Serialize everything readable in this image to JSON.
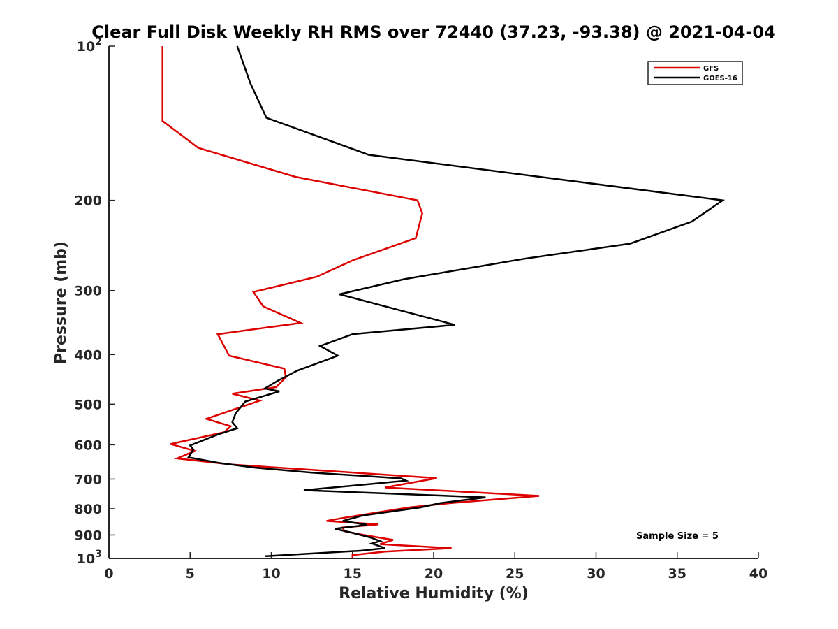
{
  "chart_data": {
    "type": "line",
    "title": "Clear Full Disk Weekly RH RMS over 72440 (37.23, -93.38) @ 2021-04-04",
    "xlabel": "Relative Humidity (%)",
    "ylabel": "Pressure (mb)",
    "xlim": [
      0,
      40
    ],
    "ylim": [
      100,
      1000
    ],
    "yscale": "log",
    "y_reversed": true,
    "grid": false,
    "legend_position": "top-right",
    "x_ticks": [
      "0",
      "5",
      "10",
      "15",
      "20",
      "25",
      "30",
      "35",
      "40"
    ],
    "y_ticks": [
      {
        "value": 100,
        "base": "10",
        "exp": "2"
      },
      {
        "value": 200,
        "label": "200"
      },
      {
        "value": 300,
        "label": "300"
      },
      {
        "value": 400,
        "label": "400"
      },
      {
        "value": 500,
        "label": "500"
      },
      {
        "value": 600,
        "label": "600"
      },
      {
        "value": 700,
        "label": "700"
      },
      {
        "value": 800,
        "label": "800"
      },
      {
        "value": 900,
        "label": "900"
      },
      {
        "value": 1000,
        "base": "10",
        "exp": "3"
      }
    ],
    "annotation": "Sample Size = 5",
    "series": [
      {
        "name": "GFS",
        "color": "#dd0000",
        "points": [
          [
            3.3,
            100
          ],
          [
            3.3,
            125
          ],
          [
            3.3,
            140
          ],
          [
            5.5,
            158
          ],
          [
            11.5,
            180
          ],
          [
            19.0,
            200
          ],
          [
            19.3,
            212
          ],
          [
            18.9,
            237
          ],
          [
            15.0,
            262
          ],
          [
            12.8,
            282
          ],
          [
            8.9,
            302
          ],
          [
            9.5,
            322
          ],
          [
            11.8,
            347
          ],
          [
            6.7,
            365
          ],
          [
            7.4,
            402
          ],
          [
            10.8,
            426
          ],
          [
            10.9,
            443
          ],
          [
            10.3,
            463
          ],
          [
            7.6,
            477
          ],
          [
            9.3,
            492
          ],
          [
            6.0,
            534
          ],
          [
            7.5,
            552
          ],
          [
            7.1,
            567
          ],
          [
            3.8,
            598
          ],
          [
            5.3,
            617
          ],
          [
            4.2,
            638
          ],
          [
            7.6,
            656
          ],
          [
            12.0,
            670
          ],
          [
            20.2,
            697
          ],
          [
            17.0,
            727
          ],
          [
            26.5,
            755
          ],
          [
            21.0,
            780
          ],
          [
            18.5,
            795
          ],
          [
            14.5,
            833
          ],
          [
            13.4,
            845
          ],
          [
            16.6,
            858
          ],
          [
            14.4,
            870
          ],
          [
            14.5,
            885
          ],
          [
            15.7,
            900
          ],
          [
            17.5,
            920
          ],
          [
            16.7,
            938
          ],
          [
            21.1,
            955
          ],
          [
            17.0,
            970
          ],
          [
            15.0,
            985
          ],
          [
            15.0,
            997
          ]
        ]
      },
      {
        "name": "GOES-16",
        "color": "#000000",
        "points": [
          [
            7.9,
            100
          ],
          [
            8.7,
            118
          ],
          [
            9.7,
            138
          ],
          [
            16.0,
            163
          ],
          [
            37.8,
            200
          ],
          [
            35.9,
            220
          ],
          [
            32.1,
            243
          ],
          [
            25.6,
            260
          ],
          [
            18.2,
            285
          ],
          [
            14.2,
            305
          ],
          [
            21.3,
            350
          ],
          [
            15.0,
            365
          ],
          [
            13.0,
            385
          ],
          [
            14.1,
            402
          ],
          [
            11.6,
            430
          ],
          [
            10.4,
            450
          ],
          [
            9.6,
            466
          ],
          [
            10.5,
            472
          ],
          [
            8.4,
            494
          ],
          [
            7.8,
            521
          ],
          [
            7.6,
            542
          ],
          [
            7.9,
            557
          ],
          [
            6.7,
            573
          ],
          [
            5.0,
            602
          ],
          [
            5.2,
            613
          ],
          [
            4.9,
            635
          ],
          [
            6.9,
            652
          ],
          [
            9.0,
            665
          ],
          [
            12.5,
            680
          ],
          [
            18.0,
            698
          ],
          [
            18.3,
            705
          ],
          [
            12.0,
            736
          ],
          [
            23.2,
            760
          ],
          [
            20.4,
            780
          ],
          [
            19.2,
            795
          ],
          [
            15.6,
            825
          ],
          [
            14.4,
            845
          ],
          [
            15.9,
            860
          ],
          [
            13.9,
            875
          ],
          [
            14.9,
            890
          ],
          [
            16.1,
            910
          ],
          [
            16.7,
            925
          ],
          [
            16.2,
            935
          ],
          [
            17.0,
            955
          ],
          [
            15.5,
            966
          ],
          [
            9.6,
            990
          ]
        ]
      }
    ]
  }
}
